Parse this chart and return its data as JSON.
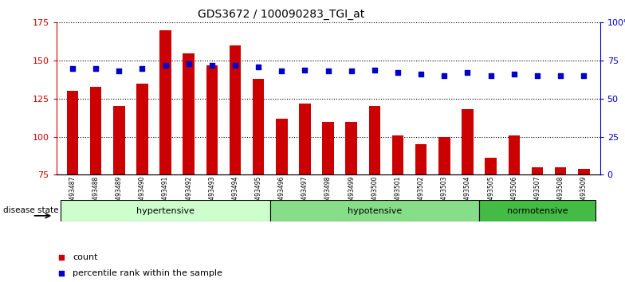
{
  "title": "GDS3672 / 100090283_TGI_at",
  "samples": [
    "GSM493487",
    "GSM493488",
    "GSM493489",
    "GSM493490",
    "GSM493491",
    "GSM493492",
    "GSM493493",
    "GSM493494",
    "GSM493495",
    "GSM493496",
    "GSM493497",
    "GSM493498",
    "GSM493499",
    "GSM493500",
    "GSM493501",
    "GSM493502",
    "GSM493503",
    "GSM493504",
    "GSM493505",
    "GSM493506",
    "GSM493507",
    "GSM493508",
    "GSM493509"
  ],
  "counts": [
    130,
    133,
    120,
    135,
    170,
    155,
    147,
    160,
    138,
    112,
    122,
    110,
    110,
    120,
    101,
    95,
    100,
    118,
    86,
    101,
    80,
    80,
    79
  ],
  "percentiles": [
    70,
    70,
    68,
    70,
    72,
    73,
    72,
    72,
    71,
    68,
    69,
    68,
    68,
    69,
    67,
    66,
    65,
    67,
    65,
    66,
    65,
    65,
    65
  ],
  "bar_color": "#cc0000",
  "dot_color": "#0000cc",
  "groups": [
    {
      "label": "hypertensive",
      "start": 0,
      "end": 9,
      "color": "#ccffcc"
    },
    {
      "label": "hypotensive",
      "start": 9,
      "end": 18,
      "color": "#88dd88"
    },
    {
      "label": "normotensive",
      "start": 18,
      "end": 23,
      "color": "#44bb44"
    }
  ],
  "ylim_left": [
    75,
    175
  ],
  "ylim_right": [
    0,
    100
  ],
  "yticks_left": [
    75,
    100,
    125,
    150,
    175
  ],
  "yticks_right": [
    0,
    25,
    50,
    75,
    100
  ],
  "ytick_labels_right": [
    "0",
    "25",
    "50",
    "75",
    "100%"
  ],
  "bg_color": "#ffffff",
  "grid_color": "#000000"
}
